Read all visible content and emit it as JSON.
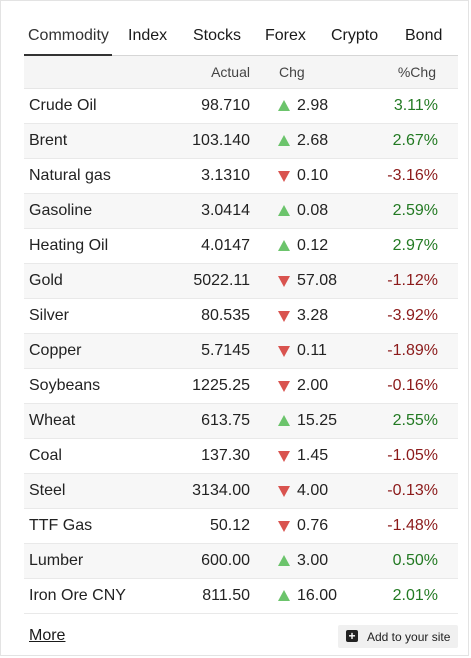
{
  "tabs": [
    {
      "label": "Commodity",
      "active": true
    },
    {
      "label": "Index",
      "active": false
    },
    {
      "label": "Stocks",
      "active": false
    },
    {
      "label": "Forex",
      "active": false
    },
    {
      "label": "Crypto",
      "active": false
    },
    {
      "label": "Bond",
      "active": false
    }
  ],
  "columns": {
    "actual": "Actual",
    "chg": "Chg",
    "pct": "%Chg"
  },
  "rows": [
    {
      "name": "Crude Oil",
      "actual": "98.710",
      "chg": "2.98",
      "pct": "3.11%",
      "dir": "up"
    },
    {
      "name": "Brent",
      "actual": "103.140",
      "chg": "2.68",
      "pct": "2.67%",
      "dir": "up"
    },
    {
      "name": "Natural gas",
      "actual": "3.1310",
      "chg": "0.10",
      "pct": "-3.16%",
      "dir": "down"
    },
    {
      "name": "Gasoline",
      "actual": "3.0414",
      "chg": "0.08",
      "pct": "2.59%",
      "dir": "up"
    },
    {
      "name": "Heating Oil",
      "actual": "4.0147",
      "chg": "0.12",
      "pct": "2.97%",
      "dir": "up"
    },
    {
      "name": "Gold",
      "actual": "5022.11",
      "chg": "57.08",
      "pct": "-1.12%",
      "dir": "down"
    },
    {
      "name": "Silver",
      "actual": "80.535",
      "chg": "3.28",
      "pct": "-3.92%",
      "dir": "down"
    },
    {
      "name": "Copper",
      "actual": "5.7145",
      "chg": "0.11",
      "pct": "-1.89%",
      "dir": "down"
    },
    {
      "name": "Soybeans",
      "actual": "1225.25",
      "chg": "2.00",
      "pct": "-0.16%",
      "dir": "down"
    },
    {
      "name": "Wheat",
      "actual": "613.75",
      "chg": "15.25",
      "pct": "2.55%",
      "dir": "up"
    },
    {
      "name": "Coal",
      "actual": "137.30",
      "chg": "1.45",
      "pct": "-1.05%",
      "dir": "down"
    },
    {
      "name": "Steel",
      "actual": "3134.00",
      "chg": "4.00",
      "pct": "-0.13%",
      "dir": "down"
    },
    {
      "name": "TTF Gas",
      "actual": "50.12",
      "chg": "0.76",
      "pct": "-1.48%",
      "dir": "down"
    },
    {
      "name": "Lumber",
      "actual": "600.00",
      "chg": "3.00",
      "pct": "0.50%",
      "dir": "up"
    },
    {
      "name": "Iron Ore CNY",
      "actual": "811.50",
      "chg": "16.00",
      "pct": "2.01%",
      "dir": "up"
    }
  ],
  "footer": {
    "more_label": "More",
    "add_label": "Add to your site"
  },
  "icons": {
    "up": "triangle-up-icon",
    "down": "triangle-down-icon",
    "add": "plus-square-icon"
  },
  "colors": {
    "up_arrow": "#6cc46c",
    "down_arrow": "#d9534f",
    "positive_text": "#237a23",
    "negative_text": "#8b1a1a"
  }
}
